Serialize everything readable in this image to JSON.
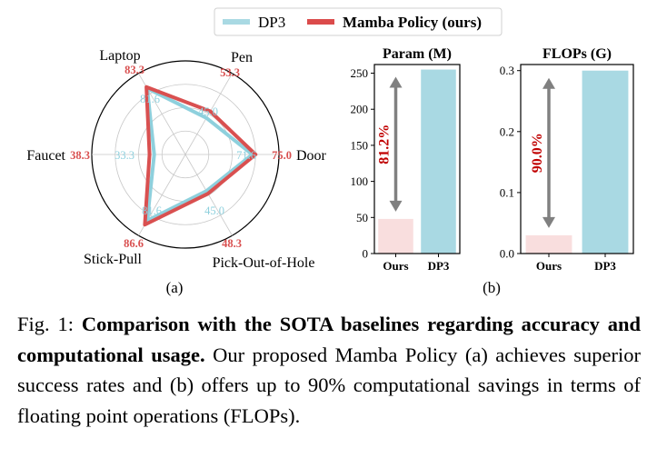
{
  "legend": [
    {
      "label": "DP3",
      "color": "#a9d9e3"
    },
    {
      "label": "Mamba Policy (ours)",
      "color": "#db4b4b"
    }
  ],
  "radar": {
    "panel_label": "(a)",
    "axes": [
      "Door",
      "Pen",
      "Laptop",
      "Faucet",
      "Stick-Pull",
      "Pick-Out-of-Hole"
    ],
    "max": 100,
    "series": [
      {
        "name": "DP3",
        "color": "#8ed0dd",
        "values": [
          71.6,
          45.0,
          81.6,
          33.3,
          81.6,
          45.0
        ]
      },
      {
        "name": "Mamba Policy (ours)",
        "color": "#d95050",
        "values": [
          75.0,
          53.3,
          83.3,
          38.3,
          86.6,
          48.3
        ]
      }
    ],
    "dp3_labels": [
      "71.6",
      "45.0",
      "81.6",
      "33.3",
      "81.6",
      "45.0"
    ],
    "mamba_labels": [
      "75.0",
      "53.3",
      "83.3",
      "38.3",
      "86.6",
      "48.3"
    ]
  },
  "chart_data": [
    {
      "type": "radar",
      "axes": [
        "Door",
        "Pen",
        "Laptop",
        "Faucet",
        "Stick-Pull",
        "Pick-Out-of-Hole"
      ],
      "series": [
        {
          "name": "DP3",
          "values": [
            71.6,
            45.0,
            81.6,
            33.3,
            81.6,
            45.0
          ]
        },
        {
          "name": "Mamba Policy (ours)",
          "values": [
            75.0,
            53.3,
            83.3,
            38.3,
            86.6,
            48.3
          ]
        }
      ]
    },
    {
      "type": "bar",
      "title": "Param (M)",
      "categories": [
        "Ours",
        "DP3"
      ],
      "values": [
        48,
        255
      ],
      "ylim": [
        0,
        262
      ],
      "yticks": [
        0,
        50,
        100,
        150,
        200,
        250
      ],
      "ytick_labels": [
        "0",
        "50",
        "100",
        "150",
        "200",
        "250"
      ],
      "bar_colors": [
        "#f9dede",
        "#a9d9e3"
      ],
      "annotation": "81.2%",
      "annotation_color": "#c00000"
    },
    {
      "type": "bar",
      "title": "FLOPs (G)",
      "categories": [
        "Ours",
        "DP3"
      ],
      "values": [
        0.03,
        0.3
      ],
      "ylim": [
        0,
        0.31
      ],
      "yticks": [
        0.0,
        0.1,
        0.2,
        0.3
      ],
      "ytick_labels": [
        "0.0",
        "0.1",
        "0.2",
        "0.3"
      ],
      "bar_colors": [
        "#f9dede",
        "#a9d9e3"
      ],
      "annotation": "90.0%",
      "annotation_color": "#c00000"
    }
  ],
  "bars_panel_label": "(b)",
  "arrow_color": "#808080",
  "caption": {
    "prefix": "Fig. 1: ",
    "bold": "Comparison with the SOTA baselines regarding accuracy and computational usage.",
    "rest": " Our proposed Mamba Policy (a) achieves superior success rates and (b) offers up to 90% computational savings in terms of floating point operations (FLOPs)."
  }
}
